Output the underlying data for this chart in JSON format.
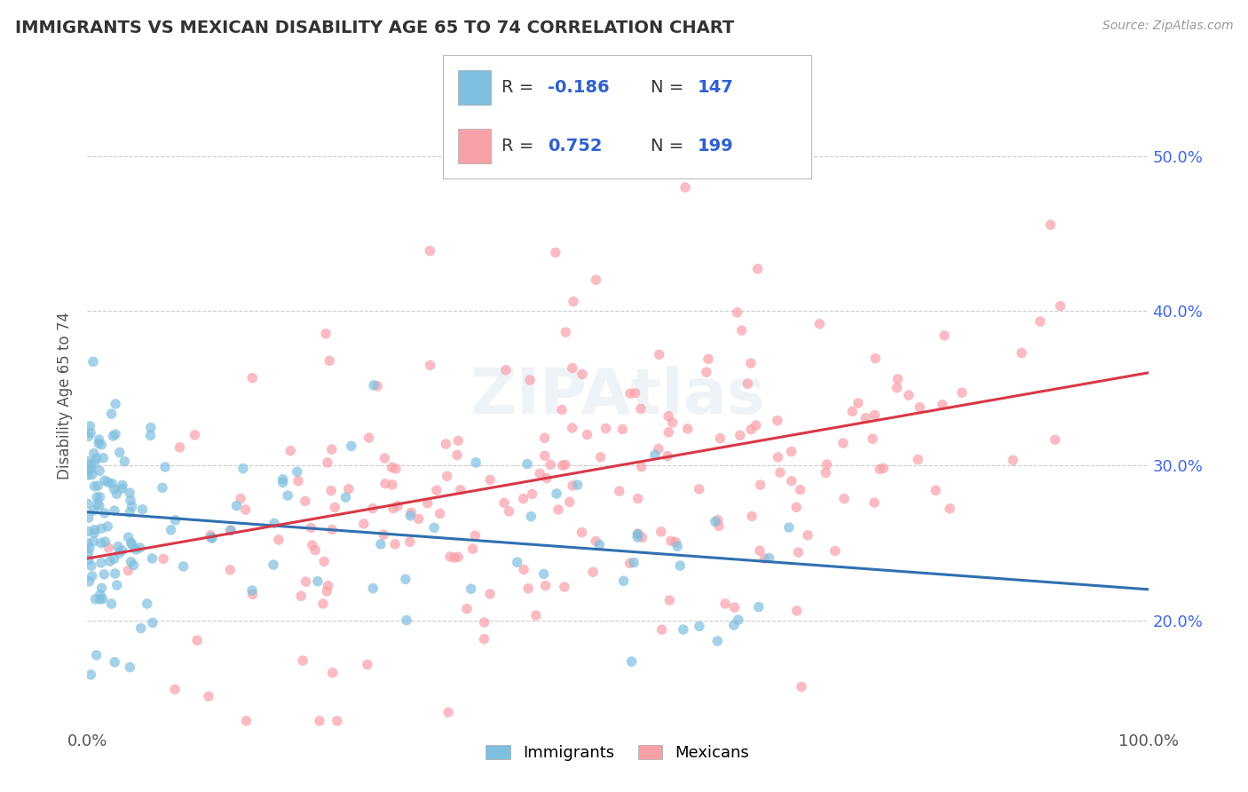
{
  "title": "IMMIGRANTS VS MEXICAN DISABILITY AGE 65 TO 74 CORRELATION CHART",
  "source_text": "Source: ZipAtlas.com",
  "ylabel": "Disability Age 65 to 74",
  "xlim": [
    0.0,
    1.0
  ],
  "ylim": [
    0.13,
    0.56
  ],
  "yticks": [
    0.2,
    0.3,
    0.4,
    0.5
  ],
  "ytick_labels": [
    "20.0%",
    "30.0%",
    "40.0%",
    "50.0%"
  ],
  "xticks": [
    0.0,
    1.0
  ],
  "xtick_labels": [
    "0.0%",
    "100.0%"
  ],
  "immigrants_R": -0.186,
  "immigrants_N": 147,
  "mexicans_R": 0.752,
  "mexicans_N": 199,
  "immigrants_color": "#7fbfdf",
  "mexicans_color": "#f8a0a8",
  "immigrants_line_color": "#3070b0",
  "mexicans_line_color": "#d83848",
  "legend_immigrants_label": "Immigrants",
  "legend_mexicans_label": "Mexicans",
  "watermark": "ZIPAtlas",
  "background_color": "#ffffff",
  "grid_color": "#cccccc",
  "title_color": "#333333",
  "axis_label_color": "#555555",
  "legend_R_color": "#3060d0",
  "legend_N_color": "#3060d0",
  "imm_line_start_y": 0.27,
  "imm_line_end_y": 0.22,
  "mex_line_start_y": 0.24,
  "mex_line_end_y": 0.36
}
